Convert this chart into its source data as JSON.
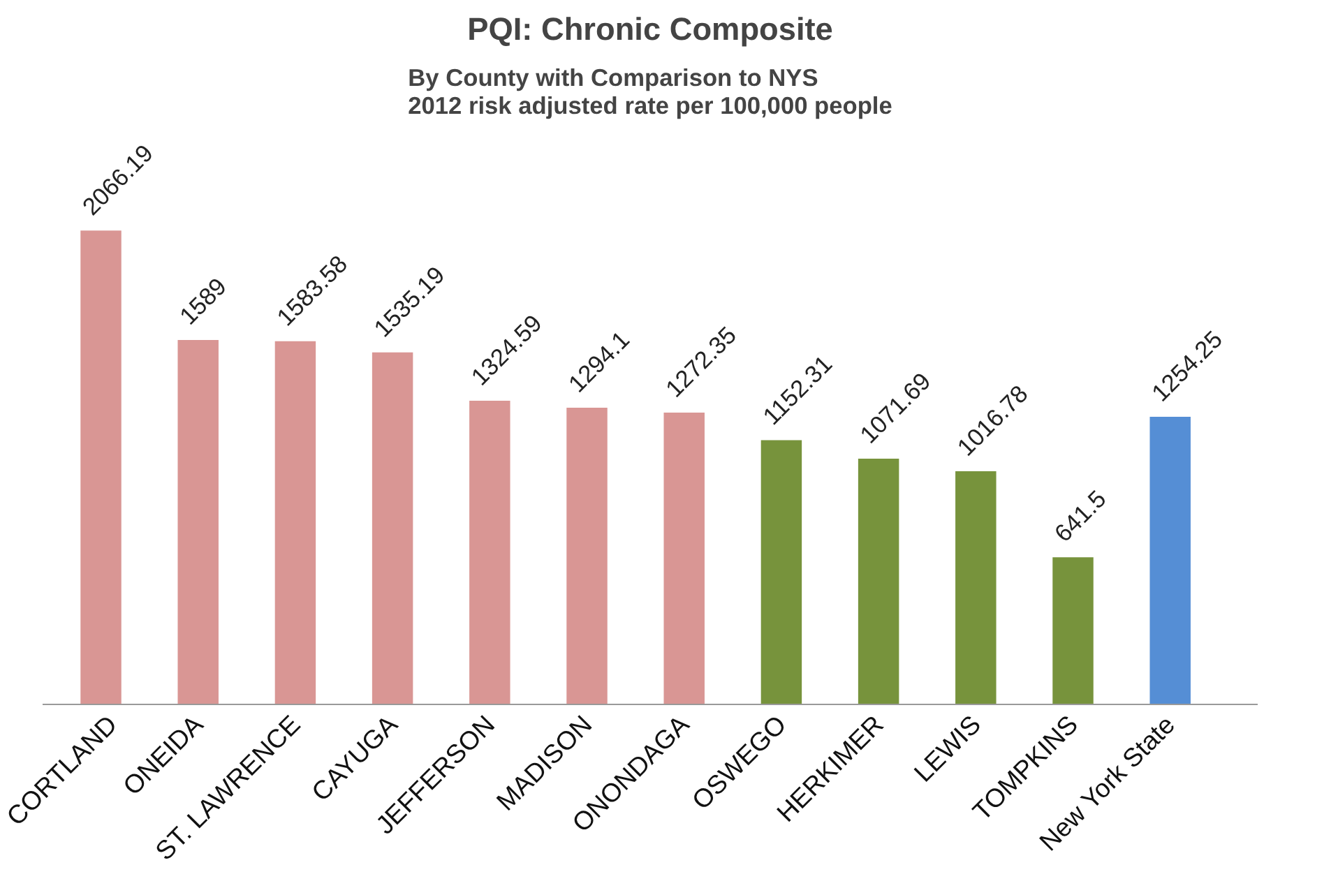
{
  "chart_data": {
    "type": "bar",
    "title": "PQI: Chronic Composite",
    "subtitle": "By County with Comparison to NYS\n2012 risk adjusted rate per 100,000 people",
    "categories": [
      "CORTLAND",
      "ONEIDA",
      "ST. LAWRENCE",
      "CAYUGA",
      "JEFFERSON",
      "MADISON",
      "ONONDAGA",
      "OSWEGO",
      "HERKIMER",
      "LEWIS",
      "TOMPKINS",
      "New York State"
    ],
    "values": [
      2066.19,
      1589,
      1583.58,
      1535.19,
      1324.59,
      1294.1,
      1272.35,
      1152.31,
      1071.69,
      1016.78,
      641.5,
      1254.25
    ],
    "colors": [
      "#d99694",
      "#d99694",
      "#d99694",
      "#d99694",
      "#d99694",
      "#d99694",
      "#d99694",
      "#77933c",
      "#77933c",
      "#77933c",
      "#77933c",
      "#558ed5"
    ],
    "data_labels": true,
    "grid": false
  }
}
